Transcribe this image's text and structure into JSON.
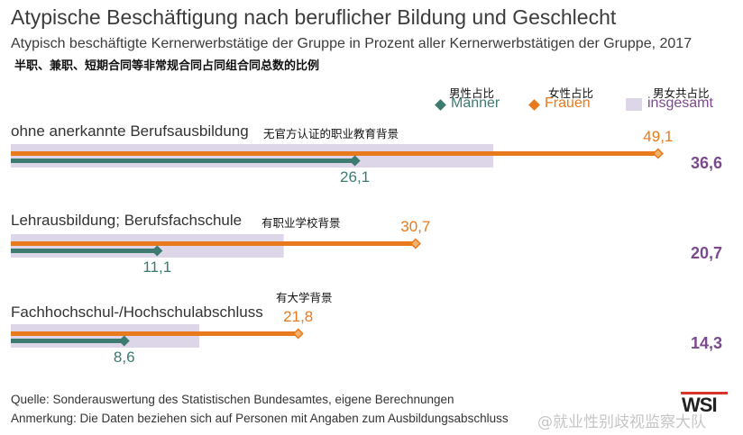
{
  "header": {
    "title": "Atypische Beschäftigung nach beruflicher Bildung und Geschlecht",
    "subtitle": "Atypisch beschäftigte Kernerwerbstätige der Gruppe in Prozent aller Kernerwerbstätigen der Gruppe, 2017",
    "cn_subtitle": "半职、兼职、短期合同等非常规合同占同组合同总数的比例"
  },
  "legend": {
    "men": {
      "label": "Männer",
      "cn": "男性占比",
      "color": "#3d7a70"
    },
    "women": {
      "label": "Frauen",
      "cn": "女性占比",
      "color": "#e8791d"
    },
    "total": {
      "label": "insgesamt",
      "cn": "男女共占比",
      "color": "#dcd6e8"
    }
  },
  "chart_data": {
    "type": "bar",
    "categories": [
      "ohne anerkannte Berufsausbildung",
      "Lehrausbildung; Berufsfachschule",
      "Fachhochschul-/Hochschulabschluss"
    ],
    "categories_cn": [
      "无官方认证的职业教育背景",
      "有职业学校背景",
      "有大学背景"
    ],
    "series": [
      {
        "name": "Männer",
        "values": [
          26.1,
          11.1,
          8.6
        ]
      },
      {
        "name": "Frauen",
        "values": [
          49.1,
          30.7,
          21.8
        ]
      },
      {
        "name": "insgesamt",
        "values": [
          36.6,
          20.7,
          14.3
        ]
      }
    ],
    "value_labels": {
      "men": [
        "26,1",
        "11,1",
        "8,6"
      ],
      "women": [
        "49,1",
        "30,7",
        "21,8"
      ],
      "total": [
        "36,6",
        "20,7",
        "14,3"
      ]
    },
    "xlim": [
      0,
      50
    ],
    "grid": false,
    "legend_position": "top-right",
    "colors": {
      "men": "#3d7a70",
      "women": "#e8791d",
      "total": "#dcd6e8",
      "total_text": "#7b4a8c"
    }
  },
  "footer": {
    "source": "Quelle: Sonderauswertung des Statistischen Bundesamtes, eigene Berechnungen",
    "note": "Anmerkung: Die Daten beziehen sich auf Personen mit Angaben zum Ausbildungsabschluss",
    "logo": "WSI",
    "watermark": "@就业性别歧视监察大队"
  }
}
